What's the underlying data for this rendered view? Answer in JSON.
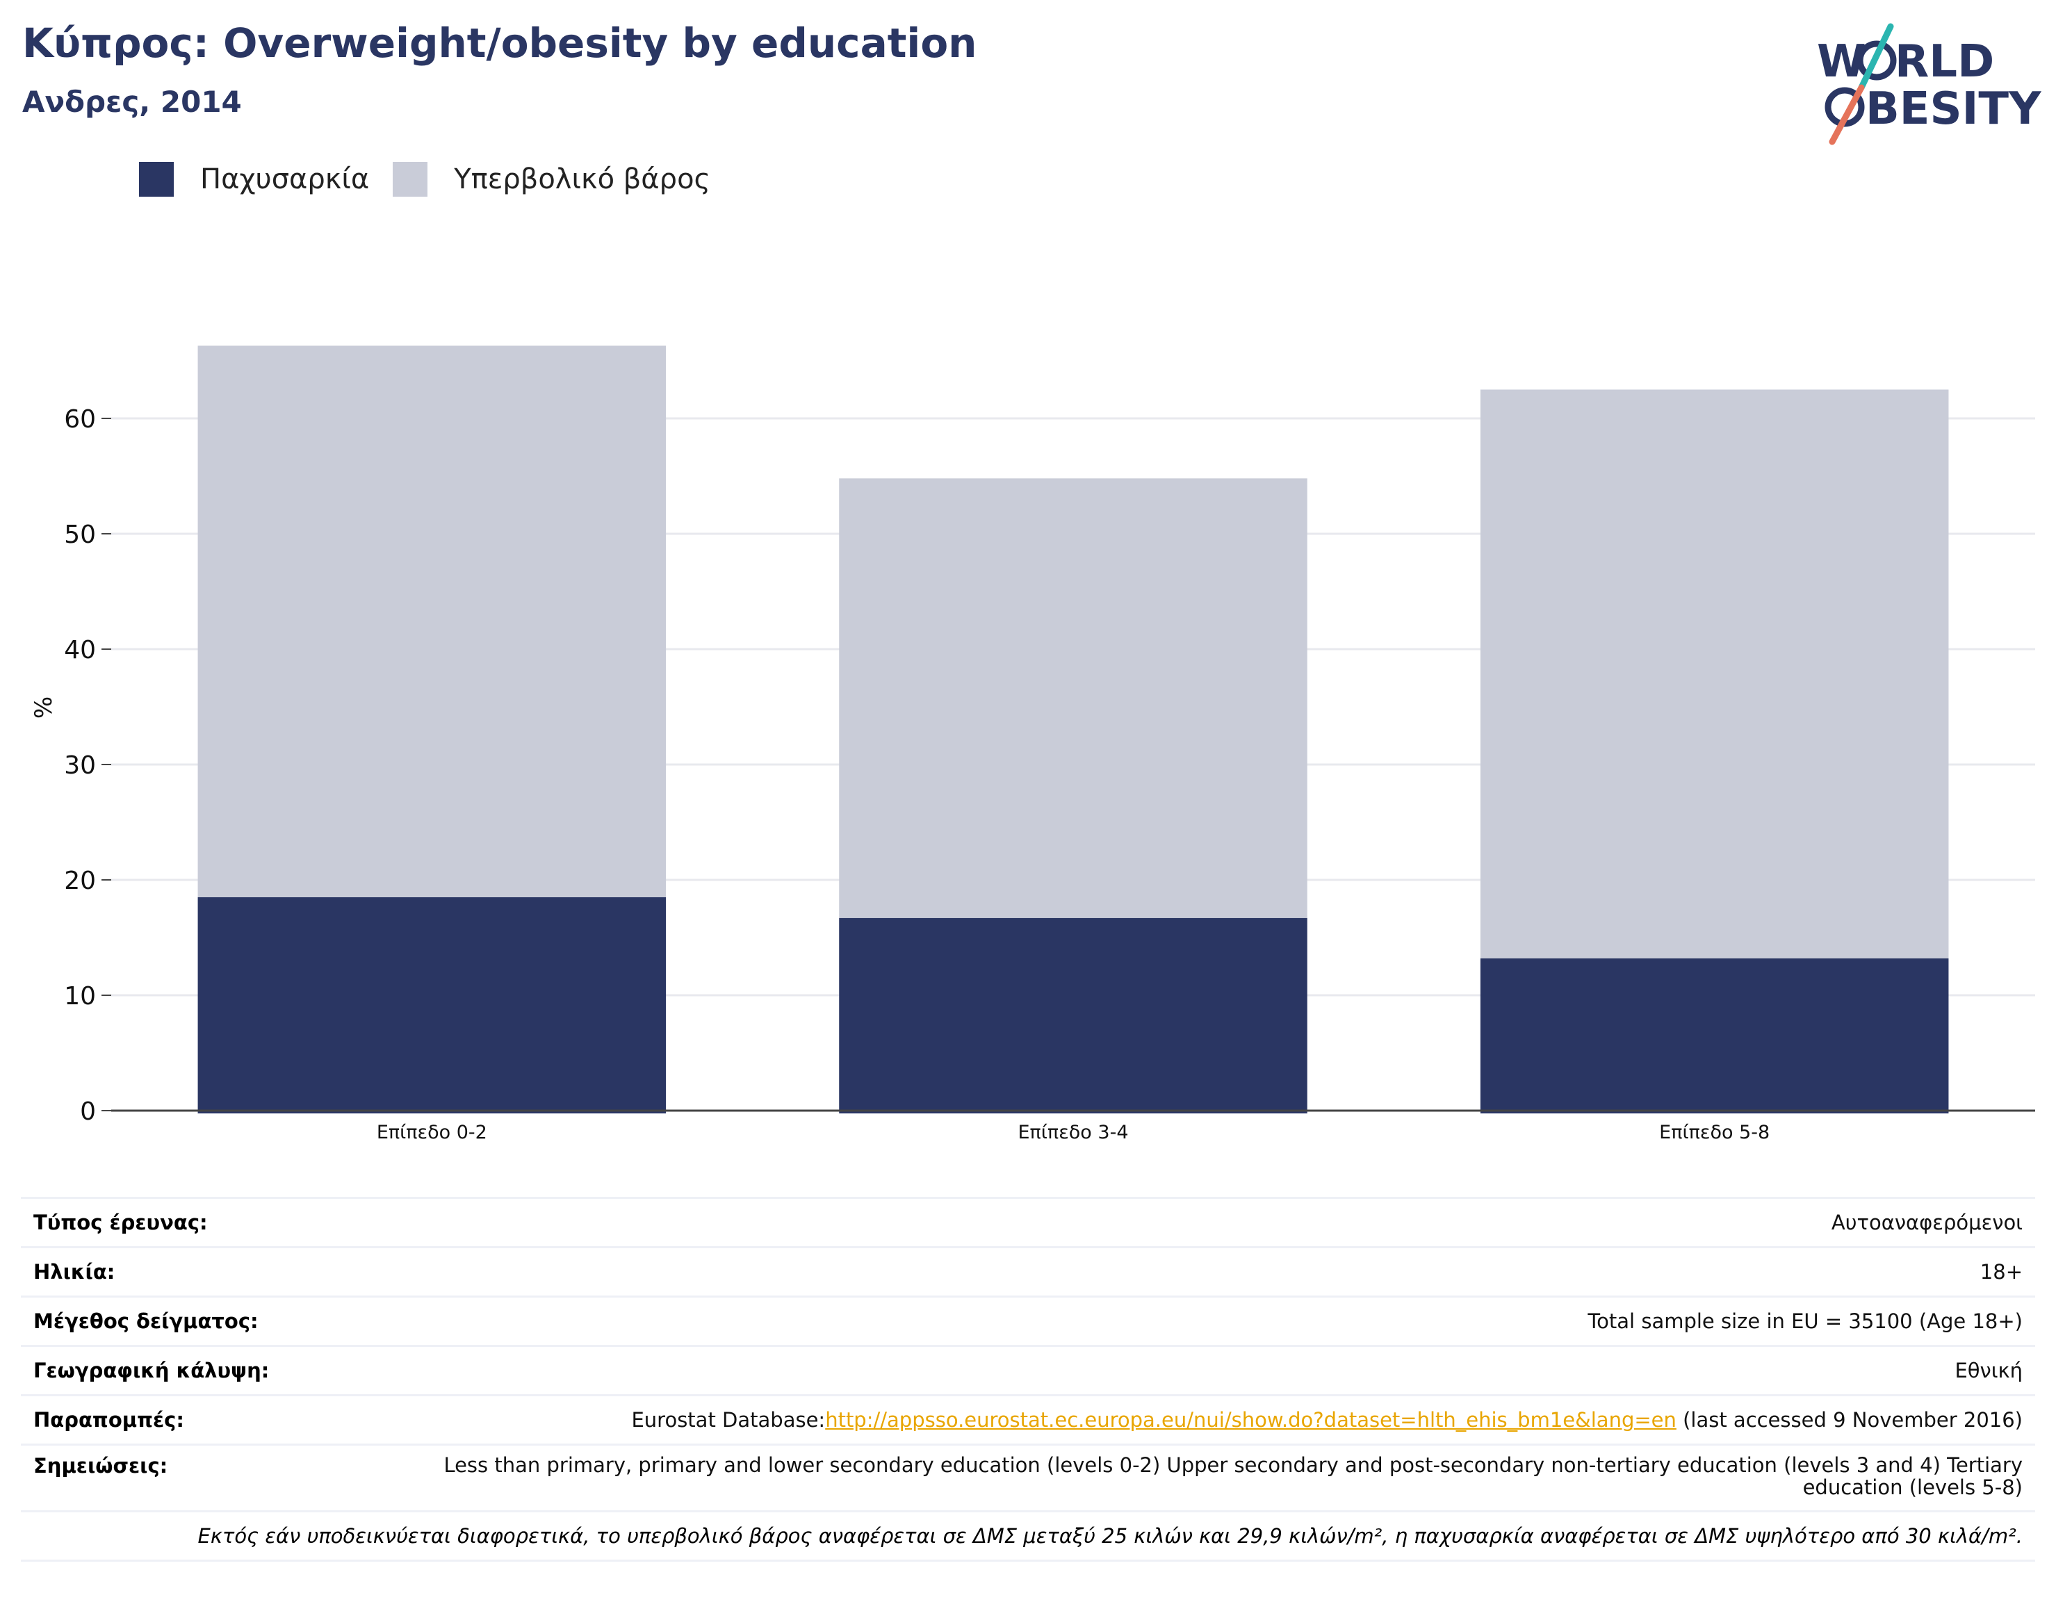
{
  "header": {
    "title": "Κύπρος: Overweight/obesity by education",
    "subtitle": "Ανδρες, 2014"
  },
  "logo": {
    "line1_left": "W",
    "line1_right": "RLD",
    "line2_right": "BESITY",
    "icon": "world-obesity-logo"
  },
  "colors": {
    "obesity": "#2a3663",
    "overweight": "#c9ccd8",
    "accent_teal": "#2bb5b0",
    "accent_coral": "#e5735a",
    "link": "#e8a500"
  },
  "chart_data": {
    "type": "bar",
    "stacked": true,
    "categories": [
      "Επίπεδο 0-2",
      "Επίπεδο 3-4",
      "Επίπεδο 5-8"
    ],
    "series": [
      {
        "name": "Παχυσαρκία",
        "values": [
          18.5,
          16.7,
          13.2
        ]
      },
      {
        "name": "Υπερβολικό βάρος",
        "values": [
          47.8,
          38.1,
          49.3
        ]
      }
    ],
    "ylabel": "%",
    "xlabel": "",
    "ylim": [
      0,
      70
    ],
    "yticks": [
      0,
      10,
      20,
      30,
      40,
      50,
      60
    ],
    "grid": true,
    "legend": "top-left"
  },
  "meta": {
    "survey_type_label": "Τύπος έρευνας:",
    "survey_type_value": "Αυτοαναφερόμενοι",
    "age_label": "Ηλικία:",
    "age_value": "18+",
    "sample_label": "Μέγεθος δείγματος:",
    "sample_value": "Total sample size in EU = 35100 (Age 18+)",
    "coverage_label": "Γεωγραφική κάλυψη:",
    "coverage_value": "Εθνική",
    "references_label": "Παραπομπές:",
    "references_prefix": "Eurostat Database:",
    "references_link": "http://appsso.eurostat.ec.europa.eu/nui/show.do?dataset=hlth_ehis_bm1e&lang=en",
    "references_suffix": " (last accessed 9 November 2016)",
    "notes_label": "Σημειώσεις:",
    "notes_value": "Less than primary, primary and lower secondary education (levels 0-2) Upper secondary and post-secondary non-tertiary education (levels 3 and 4) Tertiary education (levels 5-8)",
    "footnote": "Εκτός εάν υποδεικνύεται διαφορετικά, το υπερβολικό βάρος αναφέρεται σε ΔΜΣ μεταξύ 25 κιλών και 29,9 κιλών/m², η παχυσαρκία αναφέρεται σε ΔΜΣ υψηλότερο από 30 κιλά/m²."
  }
}
